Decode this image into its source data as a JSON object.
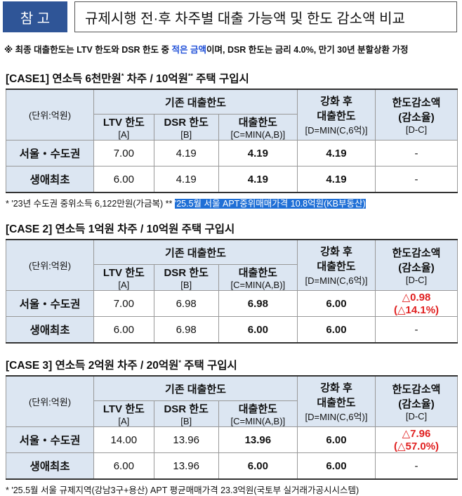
{
  "header": {
    "badge": "참 고",
    "title": "규제시행 전·후 차주별 대출 가능액 및 한도 감소액 비교"
  },
  "note": [
    "※ 최종 대출한도는 LTV 한도와 DSR 한도 중 ",
    "적은 금액",
    "이며, DSR 한도는 금리 4.0%, 만기 30년 분할상환 가정"
  ],
  "table_header": {
    "unit": "(단위:억원)",
    "group": "기존 대출한도",
    "columns": [
      [
        "LTV 한도",
        "[A]"
      ],
      [
        "DSR 한도",
        "[B]"
      ],
      [
        "대출한도",
        "[C=MIN(A,B)]"
      ],
      [
        "강화 후",
        "대출한도",
        "[D=MIN(C,6억)]"
      ],
      [
        "한도감소액",
        "(감소율)",
        "[D-C]"
      ]
    ]
  },
  "cases": [
    {
      "title": [
        "[CASE1] 연소득 6천만원",
        "*",
        " 차주 / 10억원",
        "**",
        " 주택 구입시"
      ],
      "rows": [
        [
          "서울・수도권",
          "7.00",
          "4.19",
          "4.19",
          "4.19",
          [
            "-"
          ]
        ],
        [
          "생애최초",
          "6.00",
          "4.19",
          "4.19",
          "4.19",
          [
            "-"
          ]
        ]
      ],
      "footnote": [
        "* '23년 수도권 중위소득 6,122만원(가금복)  ** ",
        "'25.5월 서울 APT중위매매가격 10.8억원(KB부동산)"
      ]
    },
    {
      "title": [
        "[CASE 2] 연소득 1억원 차주 / 10억원 주택 구입시"
      ],
      "rows": [
        [
          "서울・수도권",
          "7.00",
          "6.98",
          "6.98",
          "6.00",
          [
            "△0.98",
            "(△14.1%)"
          ]
        ],
        [
          "생애최초",
          "6.00",
          "6.98",
          "6.00",
          "6.00",
          [
            "-"
          ]
        ]
      ]
    },
    {
      "title": [
        "[CASE 3] 연소득 2억원 차주 / 20억원",
        "*",
        " 주택 구입시"
      ],
      "rows": [
        [
          "서울・수도권",
          "14.00",
          "13.96",
          "13.96",
          "6.00",
          [
            "△7.96",
            "(△57.0%)"
          ]
        ],
        [
          "생애최초",
          "6.00",
          "13.96",
          "6.00",
          "6.00",
          [
            "-"
          ]
        ]
      ],
      "footnote": [
        "* '25.5월 서울 규제지역(강남3구+용산) APT 평균매매가격 23.3억원(국토부 실거래가공시시스템)"
      ]
    }
  ]
}
